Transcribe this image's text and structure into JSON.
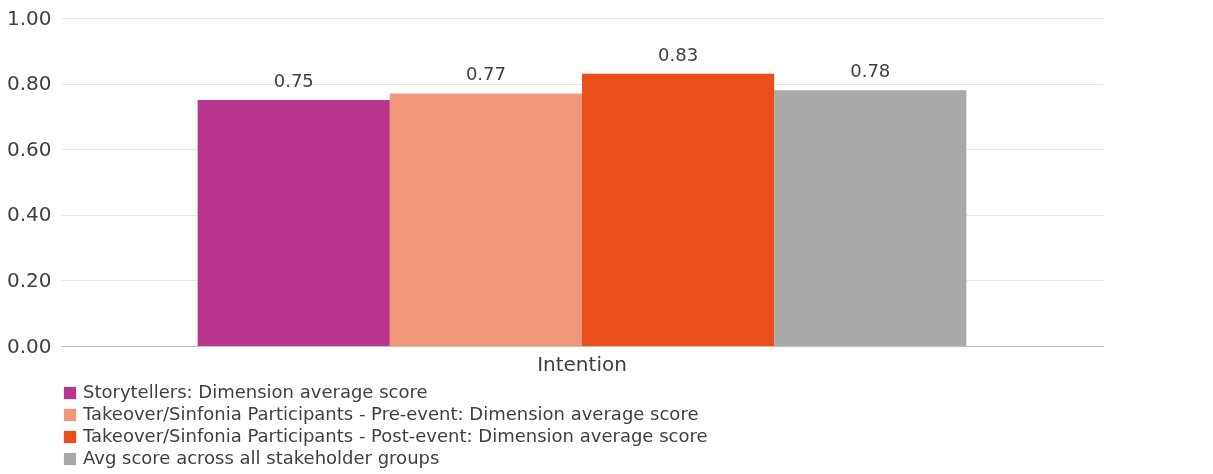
{
  "chart_data": {
    "type": "bar",
    "categories": [
      "Intention"
    ],
    "series": [
      {
        "name": "Storytellers: Dimension average score",
        "color": "#b8368e",
        "values": [
          0.75
        ]
      },
      {
        "name": "Takeover/Sinfonia Participants - Pre-event: Dimension average score",
        "color": "#f2967a",
        "values": [
          0.77
        ]
      },
      {
        "name": "Takeover/Sinfonia Participants - Post-event: Dimension average score",
        "color": "#e94e1b",
        "values": [
          0.83
        ]
      },
      {
        "name": "Avg score across all stakeholder groups",
        "color": "#a9a9a8",
        "values": [
          0.78
        ]
      }
    ],
    "ylim": [
      0,
      1
    ],
    "yticks": [
      {
        "value": 0,
        "label": "0.00"
      },
      {
        "value": 0.2,
        "label": "0.20"
      },
      {
        "value": 0.4,
        "label": "0.40"
      },
      {
        "value": 0.6,
        "label": "0.60"
      },
      {
        "value": 0.8,
        "label": "0.80"
      },
      {
        "value": 1,
        "label": "1.00"
      }
    ],
    "grid": "y",
    "legend": "bottom",
    "data_labels": true
  }
}
